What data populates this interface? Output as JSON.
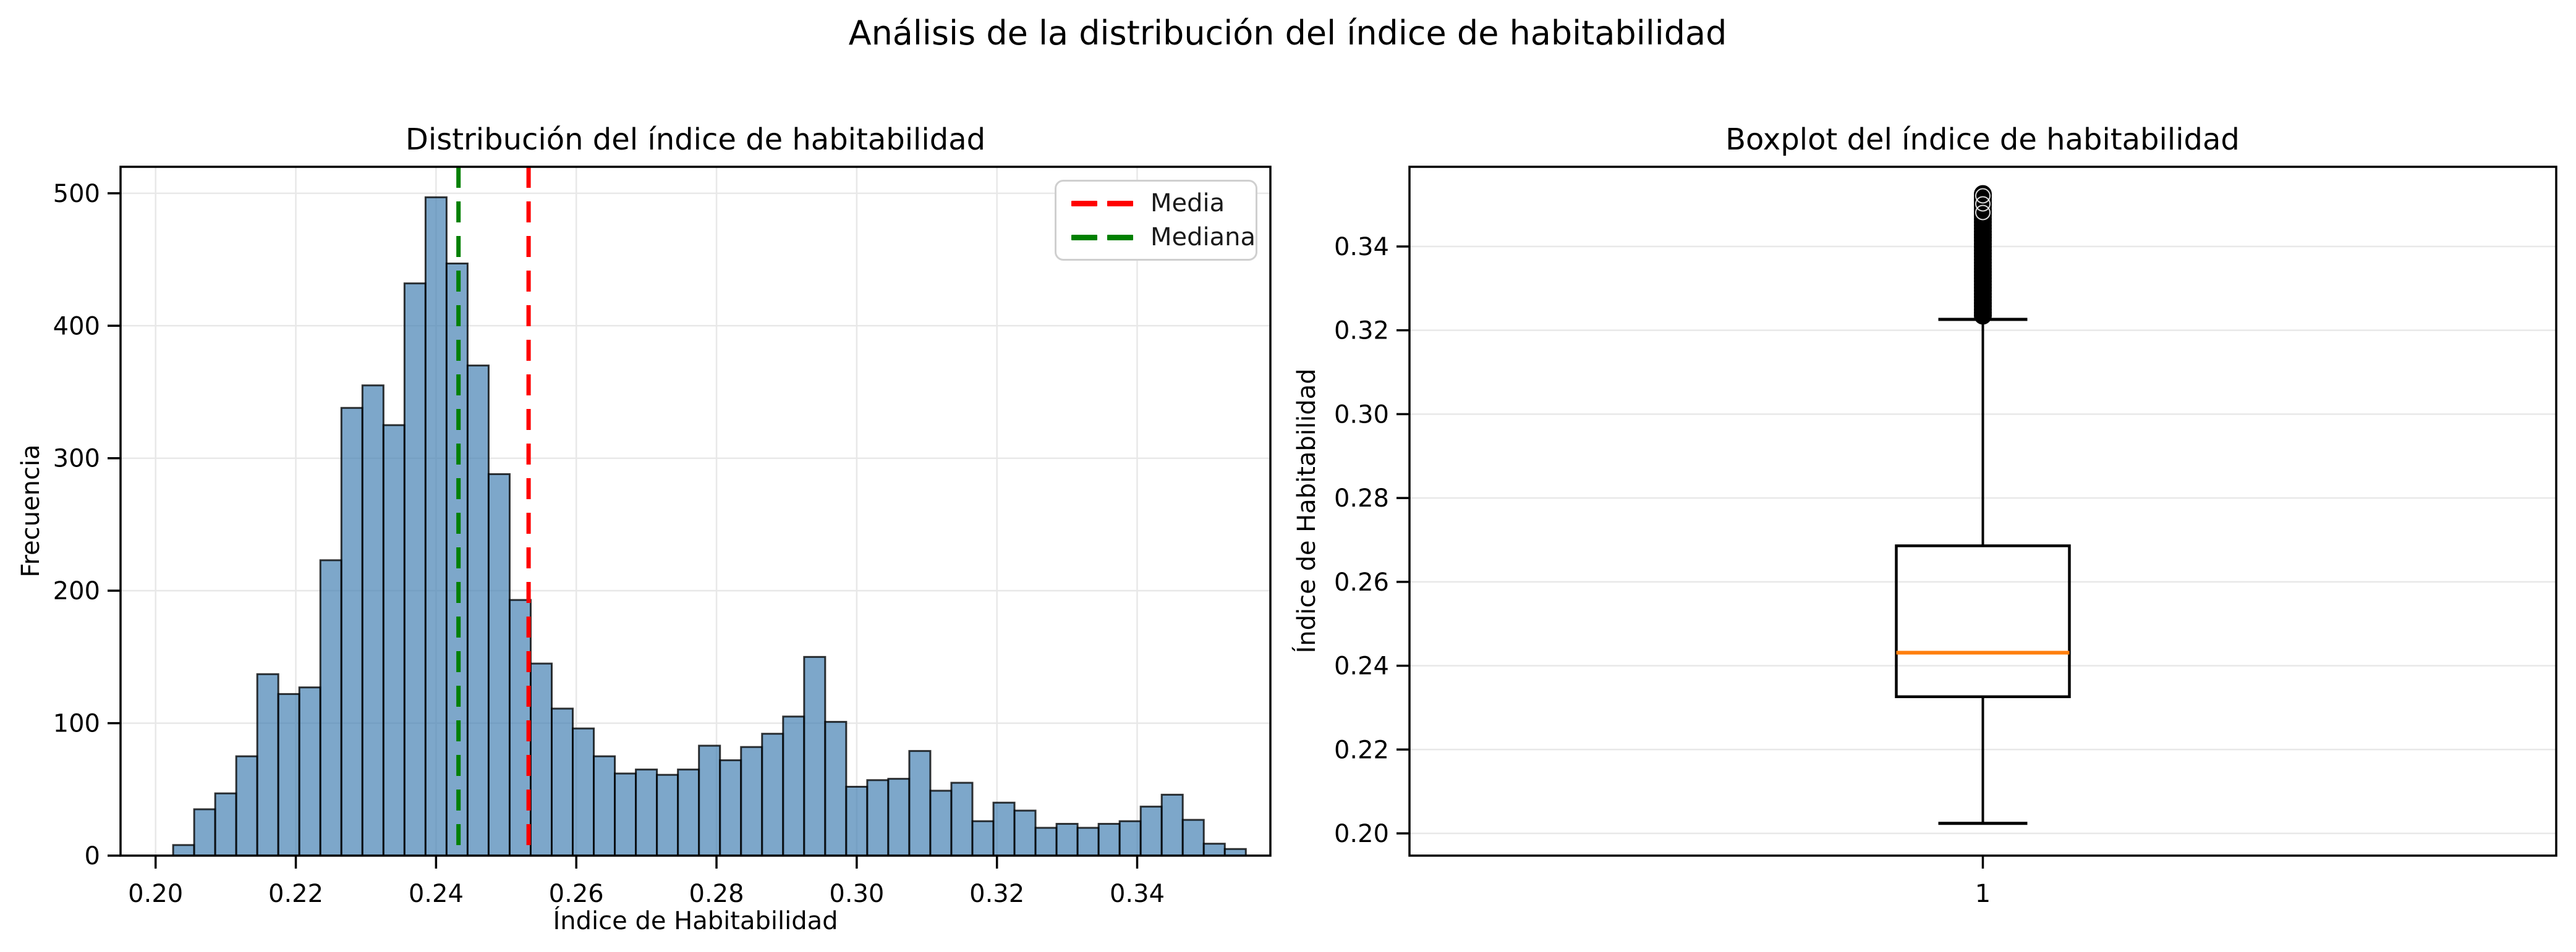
{
  "figure": {
    "title": "Análisis de la distribución del índice de habitabilidad",
    "background": "#ffffff"
  },
  "chart_data": [
    {
      "type": "bar",
      "subtype": "histogram",
      "title": "Distribución del índice de habitabilidad",
      "xlabel": "Índice de Habitabilidad",
      "ylabel": "Frecuencia",
      "bin_start": 0.2025,
      "bin_width": 0.003,
      "frequencies": [
        8,
        35,
        47,
        75,
        137,
        122,
        127,
        223,
        338,
        355,
        325,
        432,
        497,
        447,
        370,
        288,
        193,
        145,
        111,
        96,
        75,
        62,
        65,
        61,
        65,
        83,
        72,
        82,
        92,
        105,
        150,
        101,
        52,
        57,
        58,
        79,
        49,
        55,
        26,
        40,
        34,
        21,
        24,
        21,
        24,
        26,
        37,
        46,
        27,
        9,
        5
      ],
      "xlim": [
        0.195,
        0.359
      ],
      "ylim": [
        0,
        520
      ],
      "x_ticks": [
        0.2,
        0.22,
        0.24,
        0.26,
        0.28,
        0.3,
        0.32,
        0.34
      ],
      "x_tick_labels": [
        "0.20",
        "0.22",
        "0.24",
        "0.26",
        "0.28",
        "0.30",
        "0.32",
        "0.34"
      ],
      "y_ticks": [
        0,
        100,
        200,
        300,
        400,
        500
      ],
      "y_tick_labels": [
        "0",
        "100",
        "200",
        "300",
        "400",
        "500"
      ],
      "bar_color": "#4682b4",
      "bar_alpha": 0.7,
      "bar_edge_color": "#000000",
      "grid": "both",
      "grid_color": "#e8e8e8",
      "mean_line": {
        "label": "Media",
        "value": 0.2532,
        "color": "#ff0000",
        "style": "dashed"
      },
      "median_line": {
        "label": "Mediana",
        "value": 0.2432,
        "color": "#008000",
        "style": "dashed"
      },
      "legend": {
        "position": "upper right",
        "entries": [
          {
            "label": "Media",
            "color": "#ff0000",
            "style": "dashed"
          },
          {
            "label": "Mediana",
            "color": "#008000",
            "style": "dashed"
          }
        ]
      }
    },
    {
      "type": "boxplot",
      "title": "Boxplot del índice de habitabilidad",
      "ylabel": "Índice de Habitabilidad",
      "x_tick_labels": [
        "1"
      ],
      "ylim": [
        0.1947,
        0.359
      ],
      "y_ticks": [
        0.2,
        0.22,
        0.24,
        0.26,
        0.28,
        0.3,
        0.32,
        0.34
      ],
      "y_tick_labels": [
        "0.20",
        "0.22",
        "0.24",
        "0.26",
        "0.28",
        "0.30",
        "0.32",
        "0.34"
      ],
      "stats": {
        "whisker_low": 0.2024,
        "q1": 0.2326,
        "median": 0.2431,
        "q3": 0.2686,
        "whisker_high": 0.3226
      },
      "box_color": "#000000",
      "median_color": "#ff7f0e",
      "outliers": {
        "min": 0.3235,
        "max": 0.3525,
        "count": 40,
        "marker": "circle",
        "color": "#000000"
      },
      "grid": "horizontal",
      "grid_color": "#e8e8e8"
    }
  ]
}
